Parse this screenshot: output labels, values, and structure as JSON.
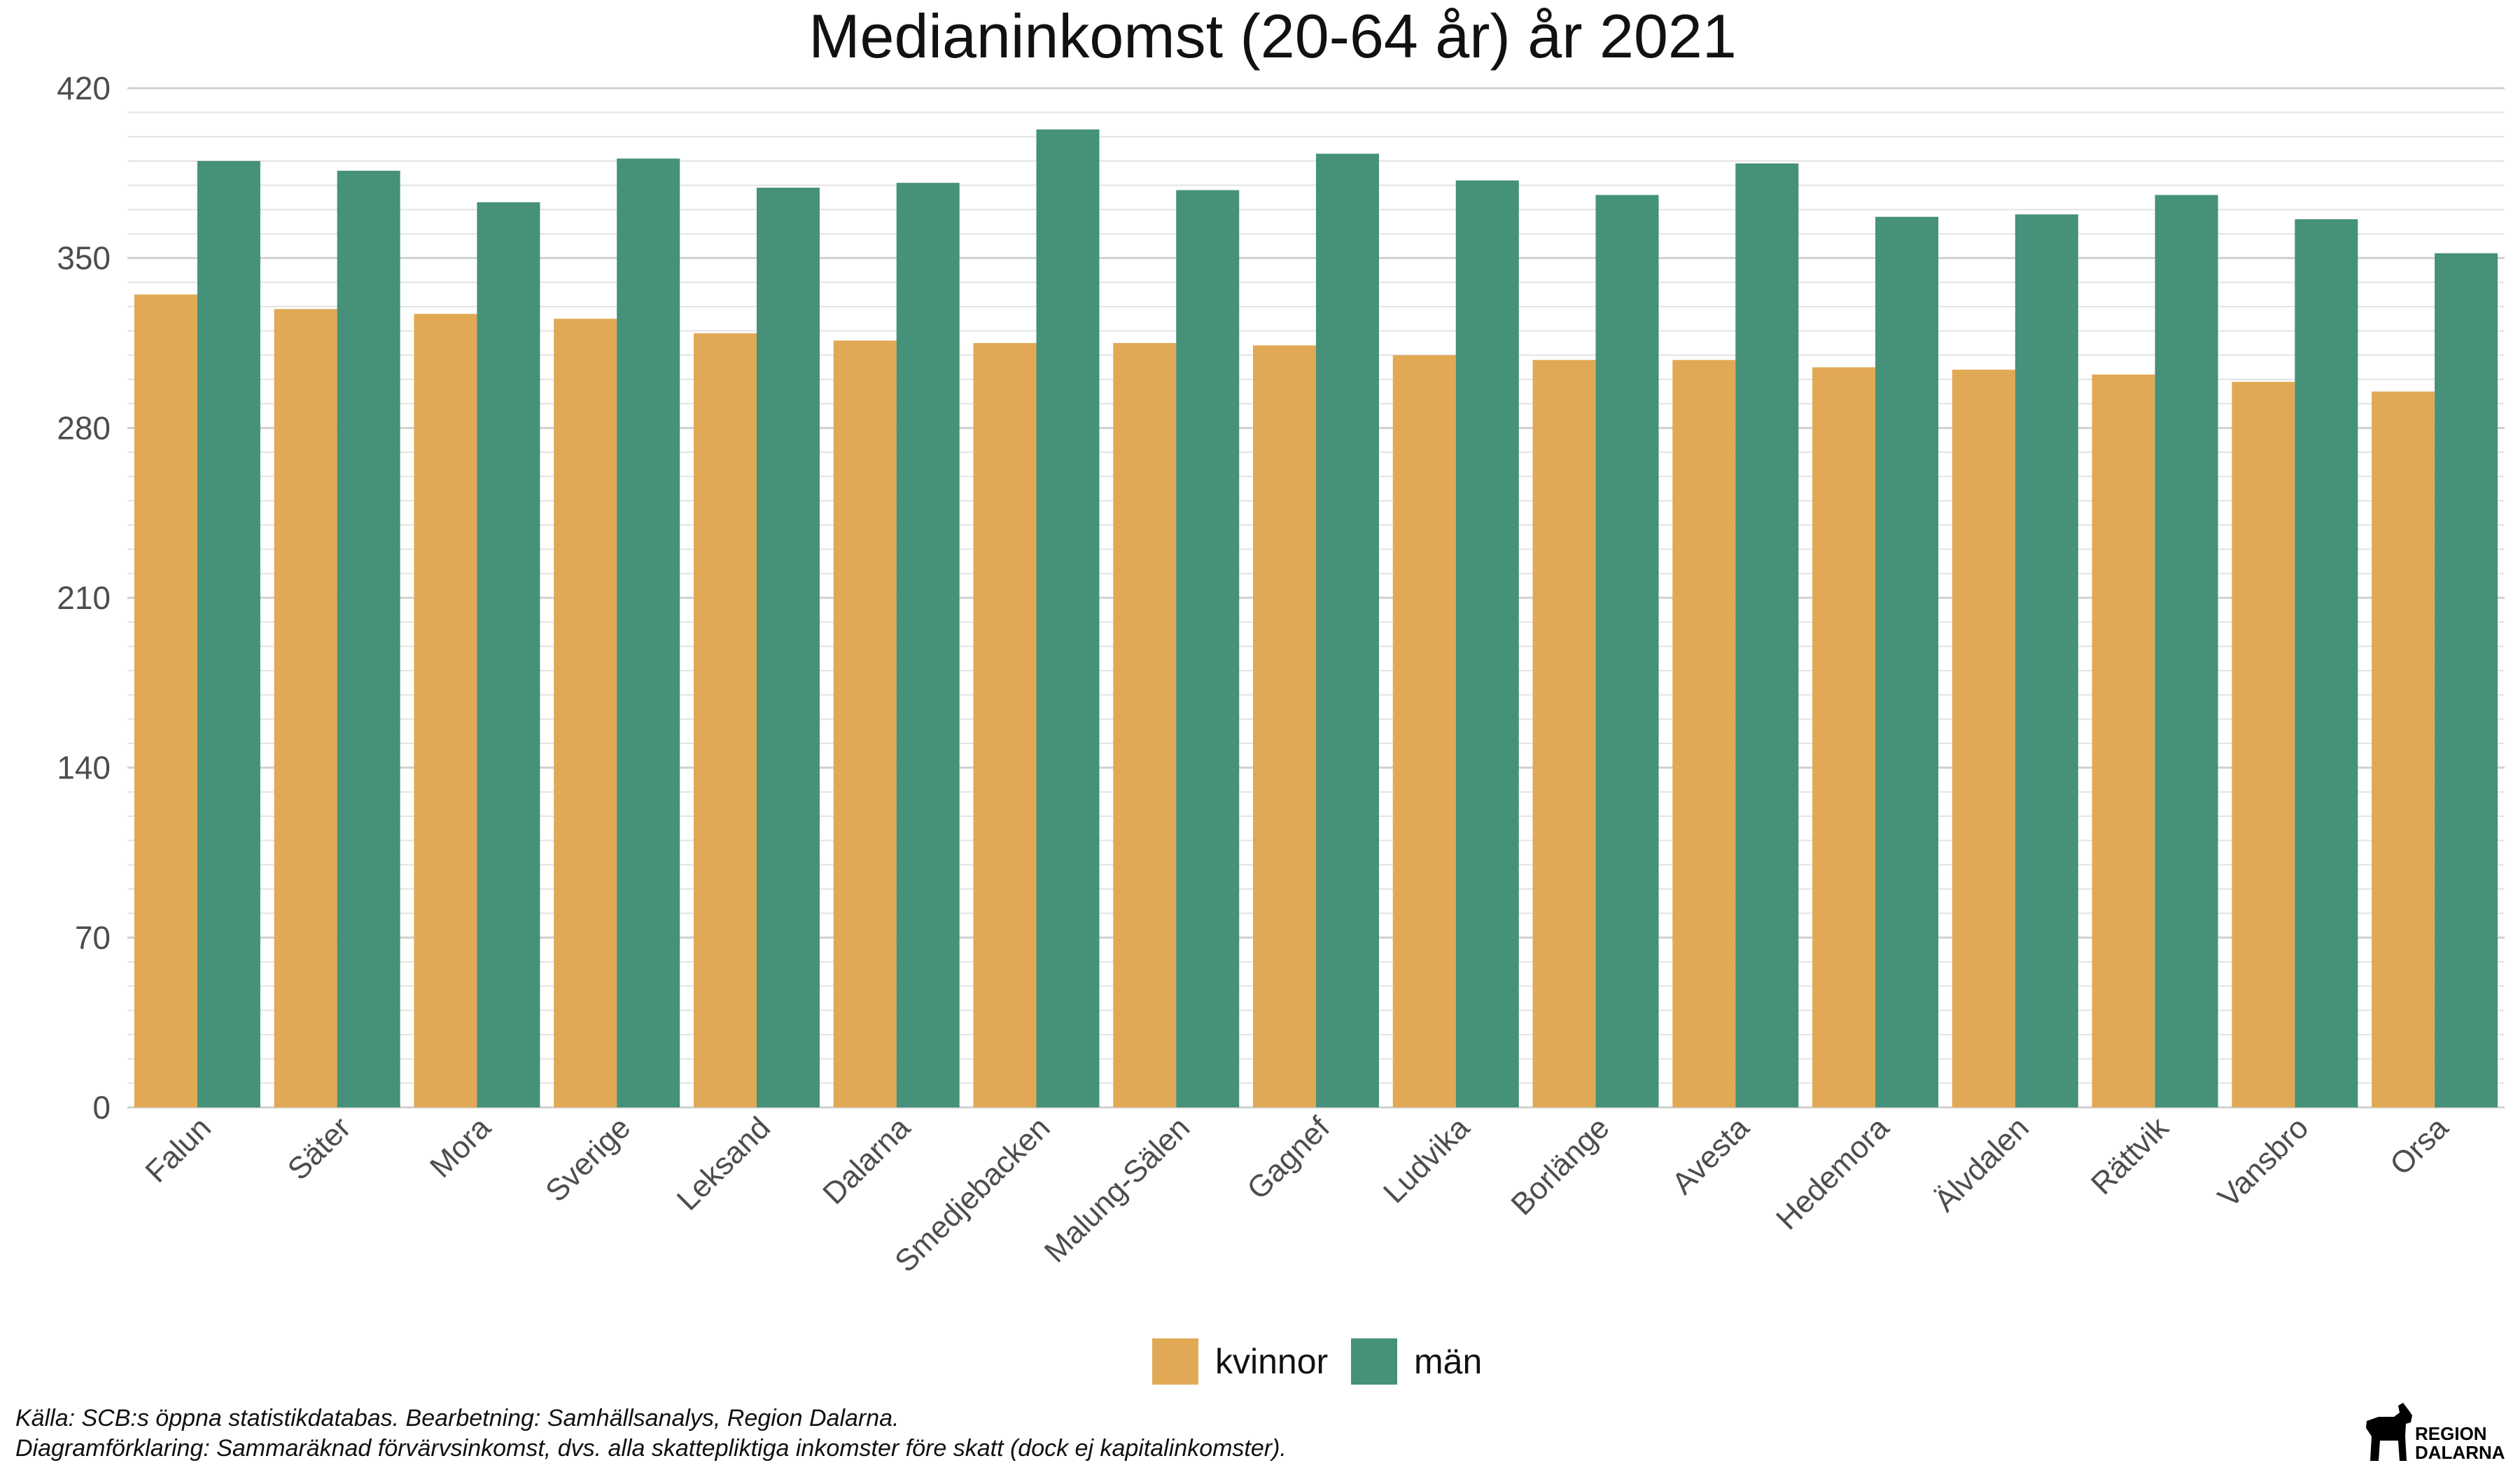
{
  "chart_data": {
    "type": "bar",
    "title": "Medianinkomst (20-64 år) år 2021",
    "xlabel": "",
    "ylabel": "",
    "ylim": [
      0,
      420
    ],
    "yticks": [
      0,
      70,
      140,
      210,
      280,
      350,
      420
    ],
    "categories": [
      "Falun",
      "Säter",
      "Mora",
      "Sverige",
      "Leksand",
      "Dalarna",
      "Smedjebacken",
      "Malung-Sälen",
      "Gagnef",
      "Ludvika",
      "Borlänge",
      "Avesta",
      "Hedemora",
      "Älvdalen",
      "Rättvik",
      "Vansbro",
      "Orsa"
    ],
    "series": [
      {
        "name": "kvinnor",
        "color": "#E1A955",
        "values": [
          335,
          329,
          327,
          325,
          319,
          316,
          315,
          315,
          314,
          310,
          308,
          308,
          305,
          304,
          302,
          299,
          295
        ]
      },
      {
        "name": "män",
        "color": "#45917A",
        "values": [
          390,
          386,
          373,
          391,
          379,
          381,
          403,
          378,
          393,
          382,
          376,
          389,
          367,
          368,
          376,
          366,
          352
        ]
      }
    ],
    "grid": true,
    "legend_position": "bottom"
  },
  "caption": {
    "line1": "Källa: SCB:s öppna statistikdatabas. Bearbetning: Samhällsanalys, Region Dalarna.",
    "line2": "Diagramförklaring: Sammaräknad förvärvsinkomst, dvs. alla skattepliktiga inkomster före skatt (dock ej kapitalinkomster)."
  },
  "logo": {
    "line1": "REGION",
    "line2": "DALARNA"
  }
}
